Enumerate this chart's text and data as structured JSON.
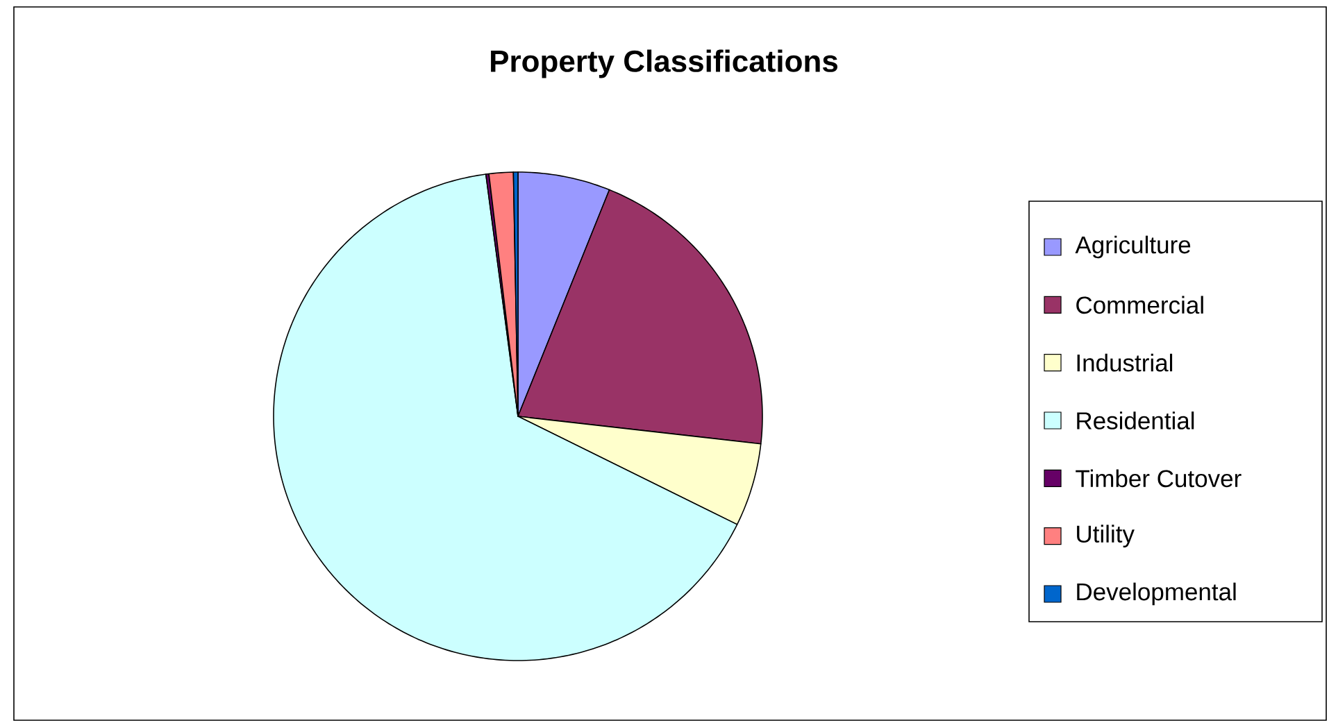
{
  "chart_data": {
    "type": "pie",
    "title": "Property Classifications",
    "categories": [
      "Agriculture",
      "Commercial",
      "Industrial",
      "Residential",
      "Timber Cutover",
      "Utility",
      "Developmental"
    ],
    "values": [
      6.1,
      20.7,
      5.5,
      65.6,
      0.2,
      1.6,
      0.3
    ],
    "colors": [
      "#9999ff",
      "#993366",
      "#ffffcc",
      "#ccffff",
      "#660066",
      "#ff8080",
      "#0066cc"
    ],
    "legend": "right"
  }
}
